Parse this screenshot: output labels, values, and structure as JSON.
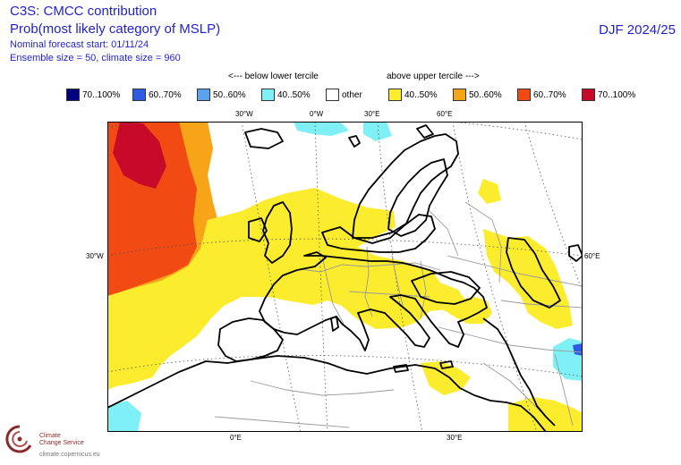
{
  "header": {
    "title": "C3S: CMCC contribution",
    "subtitle": "Prob(most likely category of MSLP)",
    "forecast_start": "Nominal forecast start: 01/11/24",
    "ensemble": "Ensemble size = 50, climate size = 960",
    "season": "DJF 2024/25"
  },
  "captions": {
    "lower": "<--- below lower tercile",
    "upper": "above upper tercile --->"
  },
  "legend": [
    {
      "label": "70..100%",
      "color": "#000080"
    },
    {
      "label": "60..70%",
      "color": "#2e5be6"
    },
    {
      "label": "50..60%",
      "color": "#5aa2ee"
    },
    {
      "label": "40..50%",
      "color": "#7ff0f5"
    },
    {
      "label": "other",
      "color": "#ffffff"
    },
    {
      "label": "40..50%",
      "color": "#fcec2e"
    },
    {
      "label": "50..60%",
      "color": "#f7a419"
    },
    {
      "label": "60..70%",
      "color": "#f24a13"
    },
    {
      "label": "70..100%",
      "color": "#c80a2a"
    }
  ],
  "ticks": {
    "top": [
      "30°W",
      "0°W",
      "30°E",
      "60°E"
    ],
    "left": "30°W",
    "right": "60°E",
    "bottom": [
      "0°E",
      "30°E"
    ]
  },
  "logo": {
    "line1": "Climate",
    "line2": "Change Service",
    "url": "climate.copernicus.eu"
  }
}
